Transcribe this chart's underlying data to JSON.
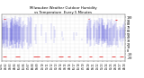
{
  "title": "Milwaukee Weather Outdoor Humidity vs Temperature Every 5 Minutes",
  "title_fontsize": 2.8,
  "background_color": "#ffffff",
  "plot_bg_color": "#ffffff",
  "grid_color": "#bbbbbb",
  "blue_color": "#0000cc",
  "red_color": "#dd0000",
  "ylim": [
    -30,
    110
  ],
  "xlim": [
    0,
    500
  ],
  "ylabel_fontsize": 2.5,
  "xlabel_fontsize": 1.8,
  "yticks": [
    -20,
    -10,
    0,
    10,
    20,
    30,
    40,
    50,
    60,
    70,
    80,
    90,
    100
  ],
  "ytick_labels": [
    "-20",
    "-10",
    "0",
    "10",
    "20",
    "30",
    "40",
    "50",
    "60",
    "70",
    "80",
    "90",
    "100"
  ],
  "seed": 42,
  "figsize": [
    1.6,
    0.87
  ],
  "dpi": 100
}
